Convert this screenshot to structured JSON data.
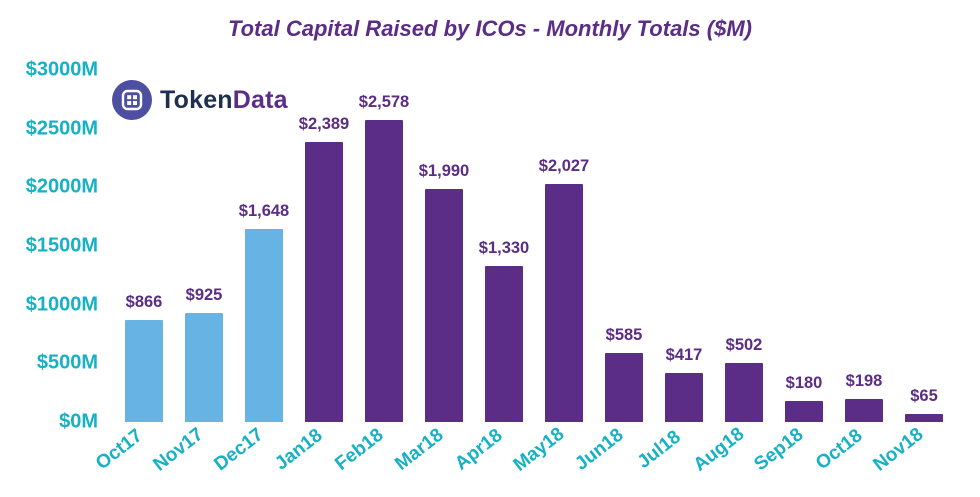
{
  "title": "Total Capital Raised by ICOs - Monthly Totals ($M)",
  "logo": {
    "part1": "Token",
    "part2": "Data"
  },
  "colors": {
    "highlight_bar": "#67b3e4",
    "main_bar": "#5b2d86",
    "axis_text": "#17b1c5",
    "value_text": "#5b2d86",
    "title_text": "#5b2d86",
    "logo_circle": "#4e4fa1",
    "logo_token": "#1e2f4f",
    "logo_data": "#5b2d86"
  },
  "chart_data": {
    "type": "bar",
    "title": "Total Capital Raised by ICOs - Monthly Totals ($M)",
    "categories": [
      "Oct17",
      "Nov17",
      "Dec17",
      "Jan18",
      "Feb18",
      "Mar18",
      "Apr18",
      "May18",
      "Jun18",
      "Jul18",
      "Aug18",
      "Sep18",
      "Oct18",
      "Nov18"
    ],
    "values": [
      866,
      925,
      1648,
      2389,
      2578,
      1990,
      1330,
      2027,
      585,
      417,
      502,
      180,
      198,
      65
    ],
    "value_labels": [
      "$866",
      "$925",
      "$1,648",
      "$2,389",
      "$2,578",
      "$1,990",
      "$1,330",
      "$2,027",
      "$585",
      "$417",
      "$502",
      "$180",
      "$198",
      "$65"
    ],
    "bar_color_keys": [
      "highlight",
      "highlight",
      "highlight",
      "main",
      "main",
      "main",
      "main",
      "main",
      "main",
      "main",
      "main",
      "main",
      "main",
      "main"
    ],
    "xlabel": "",
    "ylabel": "",
    "ylim": [
      0,
      3000
    ],
    "ytick_labels": [
      "$3000M",
      "$2500M",
      "$2000M",
      "$1500M",
      "$1000M",
      "$500M",
      "$0M"
    ],
    "grid": false,
    "legend": false
  }
}
